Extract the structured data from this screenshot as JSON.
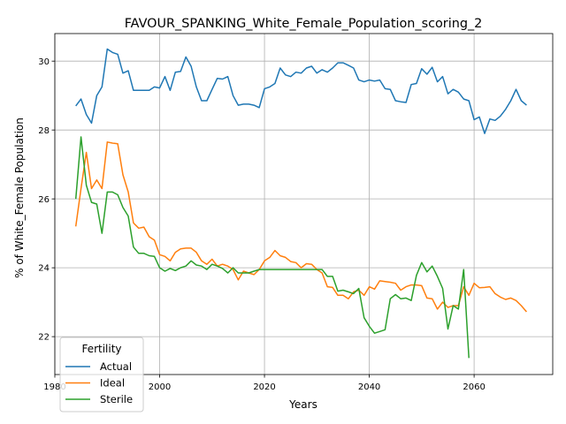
{
  "chart_data": {
    "type": "line",
    "title": "FAVOUR_SPANKING_White_Female_Population_scoring_2",
    "xlabel": "Years",
    "ylabel": "% of White_Female Population",
    "xlim": [
      1980,
      2075
    ],
    "ylim": [
      20.9,
      30.8
    ],
    "xticks": [
      1980,
      2000,
      2020,
      2040,
      2060
    ],
    "yticks": [
      22,
      24,
      26,
      28,
      30
    ],
    "grid": true,
    "legend": {
      "title": "Fertility",
      "placement": "lower-left"
    },
    "series": [
      {
        "name": "Actual",
        "color": "#1f77b4",
        "x": [
          1984,
          1985,
          1986,
          1987,
          1988,
          1989,
          1990,
          1991,
          1992,
          1993,
          1994,
          1995,
          1996,
          1997,
          1998,
          1999,
          2000,
          2001,
          2002,
          2003,
          2004,
          2005,
          2006,
          2007,
          2008,
          2009,
          2010,
          2011,
          2012,
          2013,
          2014,
          2015,
          2016,
          2017,
          2018,
          2019,
          2020,
          2021,
          2022,
          2023,
          2024,
          2025,
          2026,
          2027,
          2028,
          2029,
          2030,
          2031,
          2032,
          2033,
          2034,
          2035,
          2036,
          2037,
          2038,
          2039,
          2040,
          2041,
          2042,
          2043,
          2044,
          2045,
          2046,
          2047,
          2048,
          2049,
          2050,
          2051,
          2052,
          2053,
          2054,
          2055,
          2056,
          2057,
          2058,
          2059,
          2060,
          2061,
          2062,
          2063,
          2064,
          2065,
          2066,
          2067,
          2068,
          2069,
          2070
        ],
        "y": [
          28.7,
          28.9,
          28.45,
          28.2,
          29.0,
          29.25,
          30.35,
          30.25,
          30.2,
          29.65,
          29.72,
          29.15,
          29.15,
          29.15,
          29.15,
          29.25,
          29.22,
          29.55,
          29.15,
          29.68,
          29.7,
          30.12,
          29.85,
          29.25,
          28.85,
          28.85,
          29.18,
          29.5,
          29.48,
          29.55,
          29.0,
          28.72,
          28.75,
          28.75,
          28.72,
          28.65,
          29.2,
          29.25,
          29.35,
          29.8,
          29.6,
          29.55,
          29.68,
          29.65,
          29.8,
          29.85,
          29.65,
          29.75,
          29.68,
          29.8,
          29.95,
          29.95,
          29.88,
          29.8,
          29.45,
          29.4,
          29.45,
          29.42,
          29.45,
          29.2,
          29.18,
          28.85,
          28.82,
          28.8,
          29.32,
          29.35,
          29.78,
          29.62,
          29.82,
          29.4,
          29.55,
          29.05,
          29.18,
          29.1,
          28.9,
          28.85,
          28.3,
          28.38,
          27.9,
          28.32,
          28.28,
          28.4,
          28.6,
          28.85,
          29.18,
          28.85,
          28.72
        ]
      },
      {
        "name": "Ideal",
        "color": "#ff7f0e",
        "x": [
          1984,
          1985,
          1986,
          1987,
          1988,
          1989,
          1990,
          1991,
          1992,
          1993,
          1994,
          1995,
          1996,
          1997,
          1998,
          1999,
          2000,
          2001,
          2002,
          2003,
          2004,
          2005,
          2006,
          2007,
          2008,
          2009,
          2010,
          2011,
          2012,
          2013,
          2014,
          2015,
          2016,
          2017,
          2018,
          2019,
          2020,
          2021,
          2022,
          2023,
          2024,
          2025,
          2026,
          2027,
          2028,
          2029,
          2030,
          2031,
          2032,
          2033,
          2034,
          2035,
          2036,
          2037,
          2038,
          2039,
          2040,
          2041,
          2042,
          2043,
          2044,
          2045,
          2046,
          2047,
          2048,
          2049,
          2050,
          2051,
          2052,
          2053,
          2054,
          2055,
          2056,
          2057,
          2058,
          2059,
          2060,
          2061,
          2062,
          2063,
          2064,
          2065,
          2066,
          2067,
          2068,
          2069,
          2070
        ],
        "y": [
          25.2,
          26.3,
          27.35,
          26.3,
          26.55,
          26.3,
          27.65,
          27.62,
          27.6,
          26.7,
          26.2,
          25.3,
          25.15,
          25.18,
          24.9,
          24.8,
          24.38,
          24.33,
          24.2,
          24.45,
          24.55,
          24.57,
          24.57,
          24.45,
          24.2,
          24.1,
          24.25,
          24.05,
          24.1,
          24.05,
          23.95,
          23.65,
          23.9,
          23.85,
          23.8,
          23.95,
          24.2,
          24.3,
          24.5,
          24.35,
          24.3,
          24.18,
          24.15,
          24.0,
          24.12,
          24.1,
          23.95,
          23.85,
          23.45,
          23.43,
          23.2,
          23.2,
          23.1,
          23.3,
          23.35,
          23.2,
          23.45,
          23.38,
          23.62,
          23.6,
          23.58,
          23.55,
          23.35,
          23.45,
          23.5,
          23.5,
          23.48,
          23.12,
          23.1,
          22.8,
          23.0,
          22.85,
          22.9,
          22.9,
          23.45,
          23.2,
          23.55,
          23.42,
          23.43,
          23.45,
          23.25,
          23.15,
          23.08,
          23.12,
          23.05,
          22.9,
          22.72
        ]
      },
      {
        "name": "Sterile",
        "color": "#2ca02c",
        "x": [
          1984,
          1985,
          1986,
          1987,
          1988,
          1989,
          1990,
          1991,
          1992,
          1993,
          1994,
          1995,
          1996,
          1997,
          1998,
          1999,
          2000,
          2001,
          2002,
          2003,
          2004,
          2005,
          2006,
          2007,
          2008,
          2009,
          2010,
          2011,
          2012,
          2013,
          2014,
          2015,
          2016,
          2017,
          2018,
          2019,
          2020,
          2021,
          2022,
          2023,
          2024,
          2025,
          2026,
          2027,
          2028,
          2029,
          2030,
          2031,
          2032,
          2033,
          2034,
          2035,
          2036,
          2037,
          2038,
          2039,
          2040,
          2041,
          2042,
          2043,
          2044,
          2045,
          2046,
          2047,
          2048,
          2049,
          2050,
          2051,
          2052,
          2053,
          2054,
          2055,
          2056,
          2057,
          2058,
          2059
        ],
        "y": [
          26.0,
          27.8,
          26.4,
          25.9,
          25.85,
          25.0,
          26.2,
          26.2,
          26.12,
          25.75,
          25.5,
          24.6,
          24.42,
          24.42,
          24.35,
          24.33,
          24.0,
          23.9,
          23.98,
          23.92,
          24.0,
          24.05,
          24.2,
          24.08,
          24.05,
          23.95,
          24.1,
          24.05,
          23.98,
          23.85,
          24.0,
          23.85,
          23.85,
          23.85,
          23.9,
          23.95,
          23.95,
          23.95,
          23.95,
          23.95,
          23.95,
          23.95,
          23.95,
          23.95,
          23.95,
          23.95,
          23.95,
          23.95,
          23.75,
          23.75,
          23.32,
          23.35,
          23.3,
          23.25,
          23.4,
          22.55,
          22.3,
          22.1,
          22.15,
          22.2,
          23.1,
          23.22,
          23.1,
          23.12,
          23.05,
          23.78,
          24.15,
          23.88,
          24.05,
          23.75,
          23.4,
          22.22,
          22.9,
          22.8,
          23.95,
          21.38
        ]
      }
    ]
  }
}
